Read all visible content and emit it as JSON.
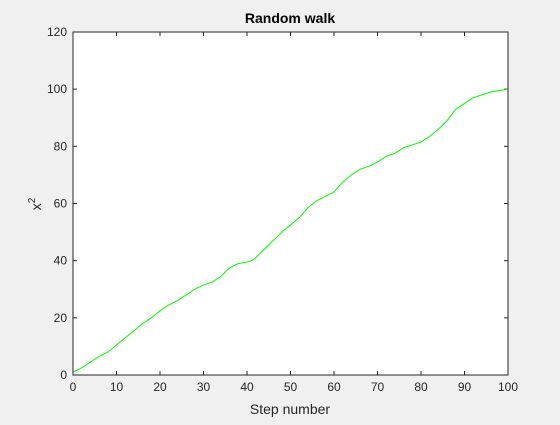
{
  "chart_data": {
    "type": "line",
    "title": "Random walk",
    "xlabel": "Step number",
    "ylabel": {
      "base": "x",
      "superscript": "2"
    },
    "xlim": [
      0,
      100
    ],
    "ylim": [
      0,
      120
    ],
    "xticks": [
      0,
      10,
      20,
      30,
      40,
      50,
      60,
      70,
      80,
      90,
      100
    ],
    "yticks": [
      0,
      20,
      40,
      60,
      80,
      100,
      120
    ],
    "grid": false,
    "colors": {
      "line": "#00ff00",
      "axes": "#262626",
      "plot_bg": "#ffffff",
      "figure_bg": "#f0f0f0"
    },
    "series": [
      {
        "x": [
          0,
          2,
          4,
          6,
          8,
          10,
          12,
          14,
          16,
          18,
          20,
          22,
          24,
          26,
          28,
          30,
          32,
          34,
          36,
          38,
          40,
          41,
          42,
          44,
          46,
          48,
          50,
          52,
          54,
          56,
          58,
          60,
          62,
          64,
          66,
          68,
          70,
          72,
          74,
          76,
          78,
          80,
          82,
          84,
          86,
          88,
          90,
          92,
          94,
          96,
          98,
          100
        ],
        "y": [
          1,
          2.5,
          4.5,
          6.5,
          8,
          10.5,
          13,
          15.5,
          18,
          20,
          22.5,
          24.5,
          26,
          28,
          30,
          31.5,
          32.5,
          34.5,
          37.5,
          39,
          39.5,
          40,
          41,
          44,
          47,
          50,
          52.5,
          55,
          58.5,
          61,
          62.5,
          64,
          67.5,
          70,
          72,
          73,
          74.5,
          76.5,
          77.5,
          79.5,
          80.5,
          81.5,
          83.5,
          86,
          89,
          93,
          95,
          97,
          98,
          99,
          99.5,
          100
        ]
      }
    ]
  }
}
